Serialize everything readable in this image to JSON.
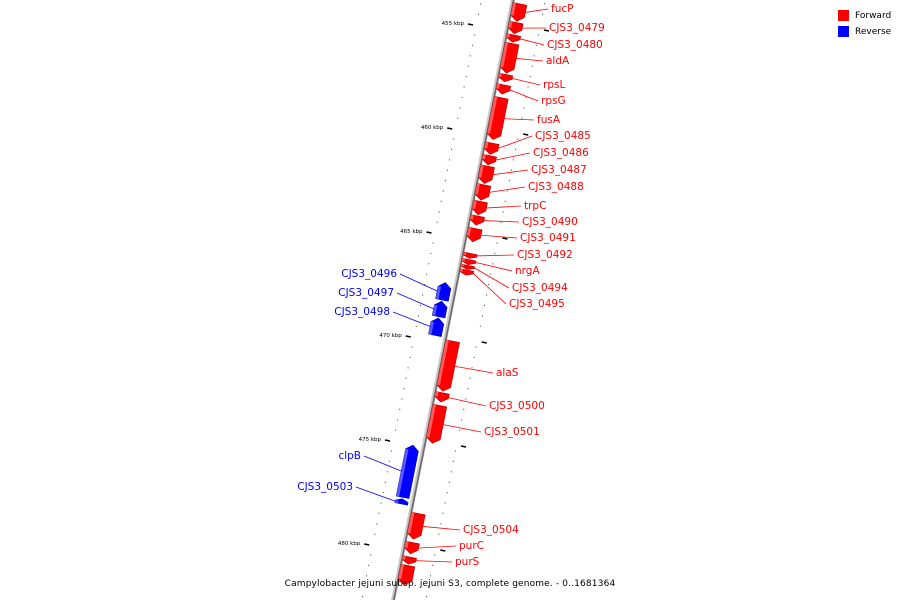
{
  "caption": "Campylobacter jejuni subsp. jejuni S3, complete genome. - 0..1681364",
  "legend": {
    "forward": "Forward",
    "reverse": "Reverse",
    "forward_color": "#ff0000",
    "reverse_color": "#0000ff"
  },
  "ticks": [
    {
      "label": "455 kbp",
      "kbp": 455
    },
    {
      "label": "460 kbp",
      "kbp": 460
    },
    {
      "label": "465 kbp",
      "kbp": 465
    },
    {
      "label": "470 kbp",
      "kbp": 470
    },
    {
      "label": "475 kbp",
      "kbp": 475
    },
    {
      "label": "480 kbp",
      "kbp": 480
    }
  ],
  "genes": [
    {
      "name": "fucP",
      "strand": "forward",
      "start_kbp": 454.0,
      "end_kbp": 454.9
    },
    {
      "name": "CJS3_0479",
      "strand": "forward",
      "start_kbp": 454.9,
      "end_kbp": 455.5
    },
    {
      "name": "CJS3_0480",
      "strand": "forward",
      "start_kbp": 455.5,
      "end_kbp": 455.9
    },
    {
      "name": "aldA",
      "strand": "forward",
      "start_kbp": 455.9,
      "end_kbp": 457.4
    },
    {
      "name": "rpsL",
      "strand": "forward",
      "start_kbp": 457.4,
      "end_kbp": 457.8
    },
    {
      "name": "rpsG",
      "strand": "forward",
      "start_kbp": 457.9,
      "end_kbp": 458.4
    },
    {
      "name": "fusA",
      "strand": "forward",
      "start_kbp": 458.5,
      "end_kbp": 460.6
    },
    {
      "name": "CJS3_0485",
      "strand": "forward",
      "start_kbp": 460.7,
      "end_kbp": 461.3
    },
    {
      "name": "CJS3_0486",
      "strand": "forward",
      "start_kbp": 461.3,
      "end_kbp": 461.8
    },
    {
      "name": "CJS3_0487",
      "strand": "forward",
      "start_kbp": 461.8,
      "end_kbp": 462.7
    },
    {
      "name": "CJS3_0488",
      "strand": "forward",
      "start_kbp": 462.7,
      "end_kbp": 463.5
    },
    {
      "name": "trpC",
      "strand": "forward",
      "start_kbp": 463.5,
      "end_kbp": 464.2
    },
    {
      "name": "CJS3_0490",
      "strand": "forward",
      "start_kbp": 464.2,
      "end_kbp": 464.7
    },
    {
      "name": "CJS3_0491",
      "strand": "forward",
      "start_kbp": 464.8,
      "end_kbp": 465.5
    },
    {
      "name": "CJS3_0492",
      "strand": "forward",
      "start_kbp": 466.0,
      "end_kbp": 466.3
    },
    {
      "name": "nrgA",
      "strand": "forward",
      "start_kbp": 466.3,
      "end_kbp": 466.6
    },
    {
      "name": "CJS3_0494",
      "strand": "forward",
      "start_kbp": 466.6,
      "end_kbp": 466.8
    },
    {
      "name": "CJS3_0495",
      "strand": "forward",
      "start_kbp": 466.8,
      "end_kbp": 467.1
    },
    {
      "name": "CJS3_0496",
      "strand": "reverse",
      "start_kbp": 467.4,
      "end_kbp": 468.3
    },
    {
      "name": "CJS3_0497",
      "strand": "reverse",
      "start_kbp": 468.3,
      "end_kbp": 469.1
    },
    {
      "name": "CJS3_0498",
      "strand": "reverse",
      "start_kbp": 469.1,
      "end_kbp": 470.0
    },
    {
      "name": "alaS",
      "strand": "forward",
      "start_kbp": 470.2,
      "end_kbp": 472.7
    },
    {
      "name": "CJS3_0500",
      "strand": "forward",
      "start_kbp": 472.7,
      "end_kbp": 473.2
    },
    {
      "name": "CJS3_0501",
      "strand": "forward",
      "start_kbp": 473.3,
      "end_kbp": 475.2
    },
    {
      "name": "clpB",
      "strand": "reverse",
      "start_kbp": 475.2,
      "end_kbp": 477.8
    },
    {
      "name": "CJS3_0503",
      "strand": "reverse",
      "start_kbp": 477.8,
      "end_kbp": 478.1
    },
    {
      "name": "CJS3_0504",
      "strand": "forward",
      "start_kbp": 478.5,
      "end_kbp": 479.8
    },
    {
      "name": "purC",
      "strand": "forward",
      "start_kbp": 479.9,
      "end_kbp": 480.5
    },
    {
      "name": "purS",
      "strand": "forward",
      "start_kbp": 480.6,
      "end_kbp": 481.0
    },
    {
      "name": "",
      "strand": "forward",
      "start_kbp": 481.0,
      "end_kbp": 482.0
    }
  ]
}
